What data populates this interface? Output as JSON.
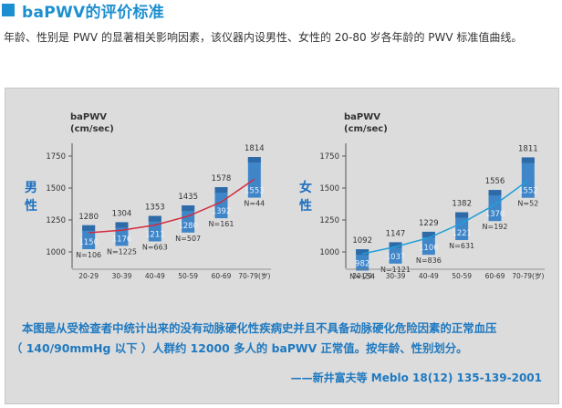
{
  "header": {
    "title": "baPWV的评价标准",
    "intro": "年龄、性别是 PWV 的显著相关影响因素，该仪器内设男性、女性的 20-80 岁各年龄的 PWV 标准值曲线。"
  },
  "colors": {
    "accent_blue": "#1d8fd0",
    "male_curve": "#d42a3c",
    "female_curve": "#1e9fd8",
    "bar_blue": "#3f86c9",
    "bar_dark": "#2e6aa8",
    "sex_label": "#1d6fbf",
    "note_text": "#1f79c0"
  },
  "chart_data": [
    {
      "type": "bar",
      "side_label": "男性",
      "ylabel_line1": "baPWV",
      "ylabel_line2": "(cm/sec)",
      "yticks": [
        1000,
        1250,
        1500,
        1750
      ],
      "ylim": [
        900,
        1850
      ],
      "categories": [
        "20-29",
        "30-39",
        "40-49",
        "50-59",
        "60-69",
        "70-79(岁)"
      ],
      "upper": [
        1280,
        1304,
        1353,
        1435,
        1578,
        1814
      ],
      "lower": [
        1150,
        1176,
        1211,
        1280,
        1392,
        1553
      ],
      "n": [
        "N=106",
        "N=1225",
        "N=663",
        "N=507",
        "N=161",
        "N=44"
      ],
      "curve": [
        1150,
        1170,
        1210,
        1280,
        1390,
        1570
      ],
      "grid": false
    },
    {
      "type": "bar",
      "side_label": "女性",
      "ylabel_line1": "baPWV",
      "ylabel_line2": "(cm/sec)",
      "yticks": [
        1000,
        1250,
        1500,
        1750
      ],
      "ylim": [
        900,
        1850
      ],
      "categories": [
        "20-29",
        "30-39",
        "40-49",
        "50-59",
        "60-69",
        "70-79(岁)"
      ],
      "upper": [
        1092,
        1147,
        1229,
        1382,
        1556,
        1811
      ],
      "lower": [
        982,
        1037,
        1106,
        1221,
        1370,
        1552
      ],
      "n": [
        "N=154",
        "N=1121",
        "N=836",
        "N=631",
        "N=192",
        "N=52"
      ],
      "curve": [
        985,
        1040,
        1110,
        1225,
        1370,
        1560
      ],
      "grid": false
    }
  ],
  "footnote": {
    "line1": "本图是从受检查者中统计出来的没有动脉硬化性疾病史并且不具备动脉硬化危险因素的正常血压",
    "line2": "（ 140/90mmHg 以下 ）人群约 12000 多人的 baPWV 正常值。按年龄、性别划分。",
    "citation": "——新井富夫等 Meblo 18(12) 135-139-2001"
  }
}
